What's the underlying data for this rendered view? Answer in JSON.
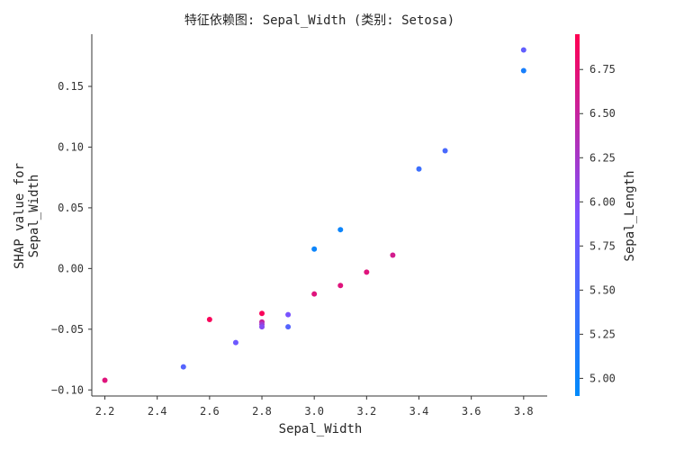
{
  "chart_data": {
    "type": "scatter",
    "title": "特征依赖图: Sepal_Width (类别: Setosa)",
    "xlabel": "Sepal_Width",
    "ylabel": [
      "SHAP value for",
      "Sepal_Width"
    ],
    "xlim": [
      2.15,
      3.89
    ],
    "ylim": [
      -0.105,
      0.193
    ],
    "x_ticks": [
      "2.2",
      "2.4",
      "2.6",
      "2.8",
      "3.0",
      "3.2",
      "3.4",
      "3.6",
      "3.8"
    ],
    "y_ticks": [
      "−0.10",
      "−0.05",
      "0.00",
      "0.05",
      "0.10",
      "0.15"
    ],
    "grid": false,
    "colorbar": {
      "label": "Sepal_Length",
      "range": [
        4.9,
        6.95
      ],
      "ticks": [
        "5.00",
        "5.25",
        "5.50",
        "5.75",
        "6.00",
        "6.25",
        "6.50",
        "6.75"
      ],
      "colormap": [
        "#008afb",
        "#7c52ff",
        "#ff0052"
      ]
    },
    "points": [
      {
        "x": 2.2,
        "y": -0.092,
        "c": 6.7
      },
      {
        "x": 2.5,
        "y": -0.081,
        "c": 5.6
      },
      {
        "x": 2.6,
        "y": -0.042,
        "c": 6.9
      },
      {
        "x": 2.7,
        "y": -0.061,
        "c": 5.8
      },
      {
        "x": 2.8,
        "y": -0.037,
        "c": 6.9
      },
      {
        "x": 2.8,
        "y": -0.044,
        "c": 6.5
      },
      {
        "x": 2.8,
        "y": -0.046,
        "c": 6.2
      },
      {
        "x": 2.8,
        "y": -0.048,
        "c": 6.0
      },
      {
        "x": 2.9,
        "y": -0.038,
        "c": 5.9
      },
      {
        "x": 2.9,
        "y": -0.048,
        "c": 5.6
      },
      {
        "x": 3.0,
        "y": -0.021,
        "c": 6.7
      },
      {
        "x": 3.0,
        "y": 0.016,
        "c": 5.0
      },
      {
        "x": 3.1,
        "y": -0.014,
        "c": 6.7
      },
      {
        "x": 3.1,
        "y": 0.032,
        "c": 5.0
      },
      {
        "x": 3.2,
        "y": -0.003,
        "c": 6.7
      },
      {
        "x": 3.3,
        "y": 0.011,
        "c": 6.6
      },
      {
        "x": 3.4,
        "y": 0.082,
        "c": 5.4
      },
      {
        "x": 3.5,
        "y": 0.097,
        "c": 5.5
      },
      {
        "x": 3.8,
        "y": 0.18,
        "c": 5.7
      },
      {
        "x": 3.8,
        "y": 0.163,
        "c": 5.1
      }
    ]
  }
}
